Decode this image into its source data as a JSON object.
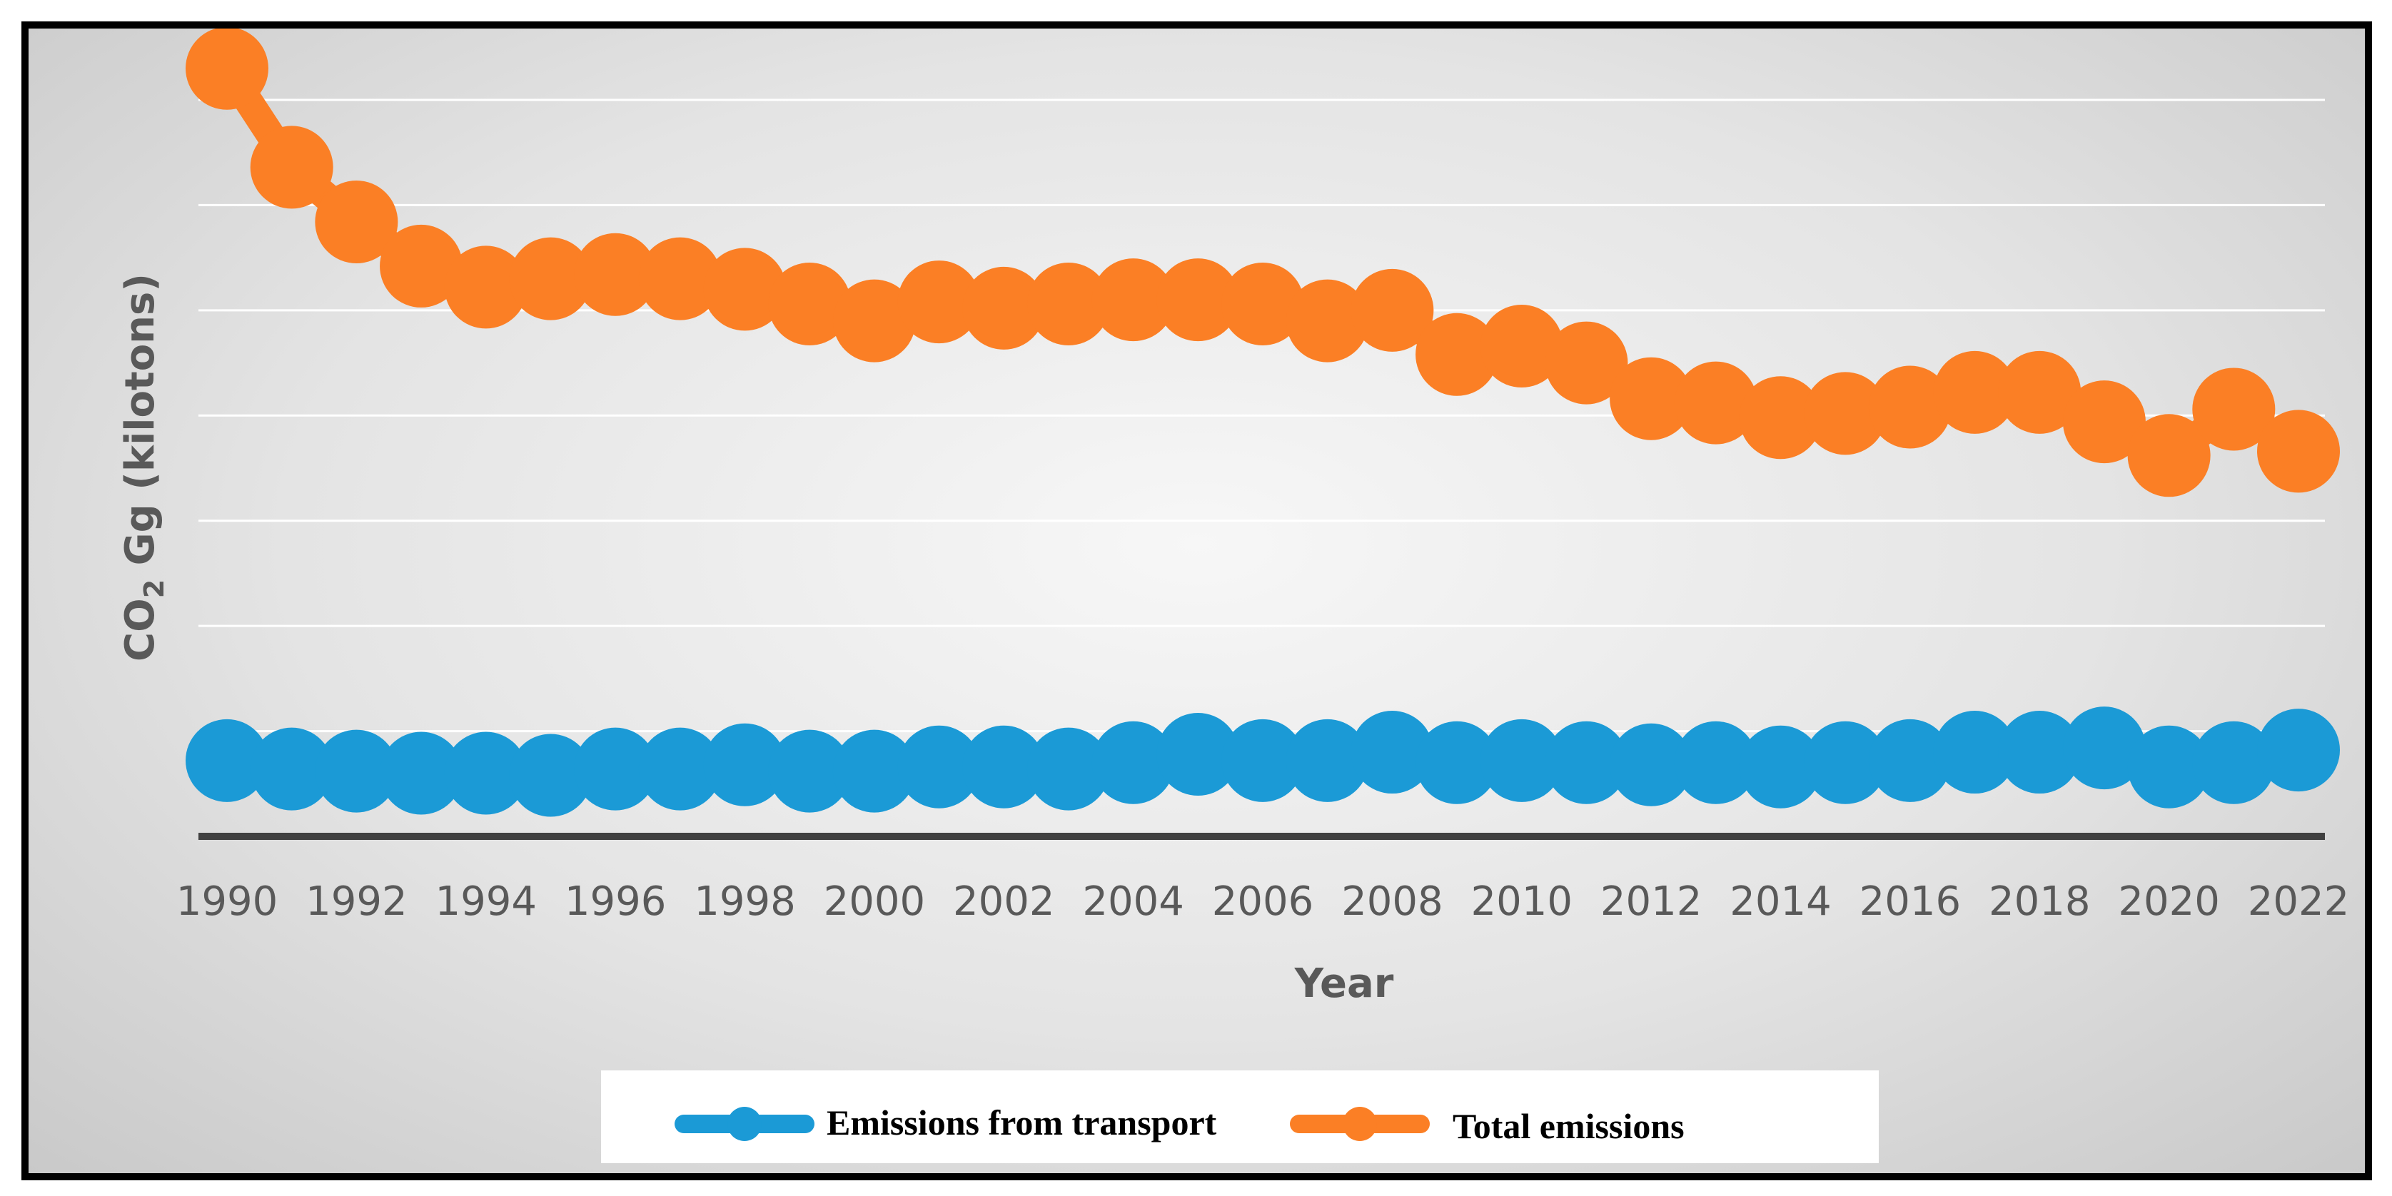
{
  "chart_data": {
    "type": "line",
    "title": "",
    "xlabel": "Year",
    "ylabel_main": "CO",
    "ylabel_subscript": "2",
    "ylabel_rest": " Gg (kilotons)",
    "ylim": [
      0,
      7
    ],
    "grid": true,
    "legend_position": "bottom",
    "x": [
      1990,
      1991,
      1992,
      1993,
      1994,
      1995,
      1996,
      1997,
      1998,
      1999,
      2000,
      2001,
      2002,
      2003,
      2004,
      2005,
      2006,
      2007,
      2008,
      2009,
      2010,
      2011,
      2012,
      2013,
      2014,
      2015,
      2016,
      2017,
      2018,
      2019,
      2020,
      2021,
      2022
    ],
    "x_tick_labels": [
      "1990",
      "1992",
      "1994",
      "1996",
      "1998",
      "2000",
      "2002",
      "2004",
      "2006",
      "2008",
      "2010",
      "2012",
      "2014",
      "2016",
      "2018",
      "2020",
      "2022"
    ],
    "series": [
      {
        "name": "Emissions from transport",
        "color": "#1b9ad6",
        "values": [
          0.72,
          0.64,
          0.62,
          0.6,
          0.6,
          0.58,
          0.64,
          0.64,
          0.68,
          0.62,
          0.62,
          0.66,
          0.66,
          0.64,
          0.7,
          0.78,
          0.72,
          0.72,
          0.8,
          0.7,
          0.72,
          0.7,
          0.68,
          0.7,
          0.66,
          0.7,
          0.72,
          0.8,
          0.8,
          0.84,
          0.66,
          0.7,
          0.82
        ]
      },
      {
        "name": "Total emissions",
        "color": "#fb7f25",
        "values": [
          7.3,
          6.36,
          5.84,
          5.42,
          5.22,
          5.3,
          5.34,
          5.3,
          5.2,
          5.06,
          4.9,
          5.08,
          5.02,
          5.06,
          5.1,
          5.1,
          5.06,
          4.9,
          5,
          4.58,
          4.66,
          4.5,
          4.16,
          4.12,
          3.98,
          4.02,
          4.08,
          4.22,
          4.22,
          3.94,
          3.62,
          4.06,
          3.66
        ]
      }
    ]
  }
}
